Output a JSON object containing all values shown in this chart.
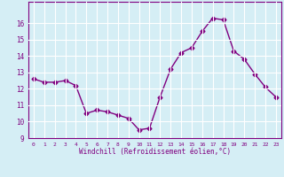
{
  "x": [
    0,
    1,
    2,
    3,
    4,
    5,
    6,
    7,
    8,
    9,
    10,
    11,
    12,
    13,
    14,
    15,
    16,
    17,
    18,
    19,
    20,
    21,
    22,
    23
  ],
  "y": [
    12.6,
    12.4,
    12.4,
    12.5,
    12.2,
    10.5,
    10.7,
    10.6,
    10.4,
    10.2,
    9.5,
    9.6,
    11.5,
    13.2,
    14.2,
    14.5,
    15.5,
    16.3,
    16.2,
    14.3,
    13.8,
    12.9,
    12.1,
    11.5
  ],
  "line_color": "#800080",
  "marker": "D",
  "marker_size": 2.5,
  "xlabel": "Windchill (Refroidissement éolien,°C)",
  "ylim": [
    9,
    17
  ],
  "xlim_min": -0.5,
  "xlim_max": 23.5,
  "yticks": [
    9,
    10,
    11,
    12,
    13,
    14,
    15,
    16
  ],
  "xticks": [
    0,
    1,
    2,
    3,
    4,
    5,
    6,
    7,
    8,
    9,
    10,
    11,
    12,
    13,
    14,
    15,
    16,
    17,
    18,
    19,
    20,
    21,
    22,
    23
  ],
  "bg_color": "#d5eef5",
  "grid_color": "#ffffff",
  "tick_label_color": "#800080",
  "spine_color": "#800080",
  "xlabel_fontsize": 5.5,
  "xtick_fontsize": 4.5,
  "ytick_fontsize": 5.5,
  "linewidth": 1.0
}
